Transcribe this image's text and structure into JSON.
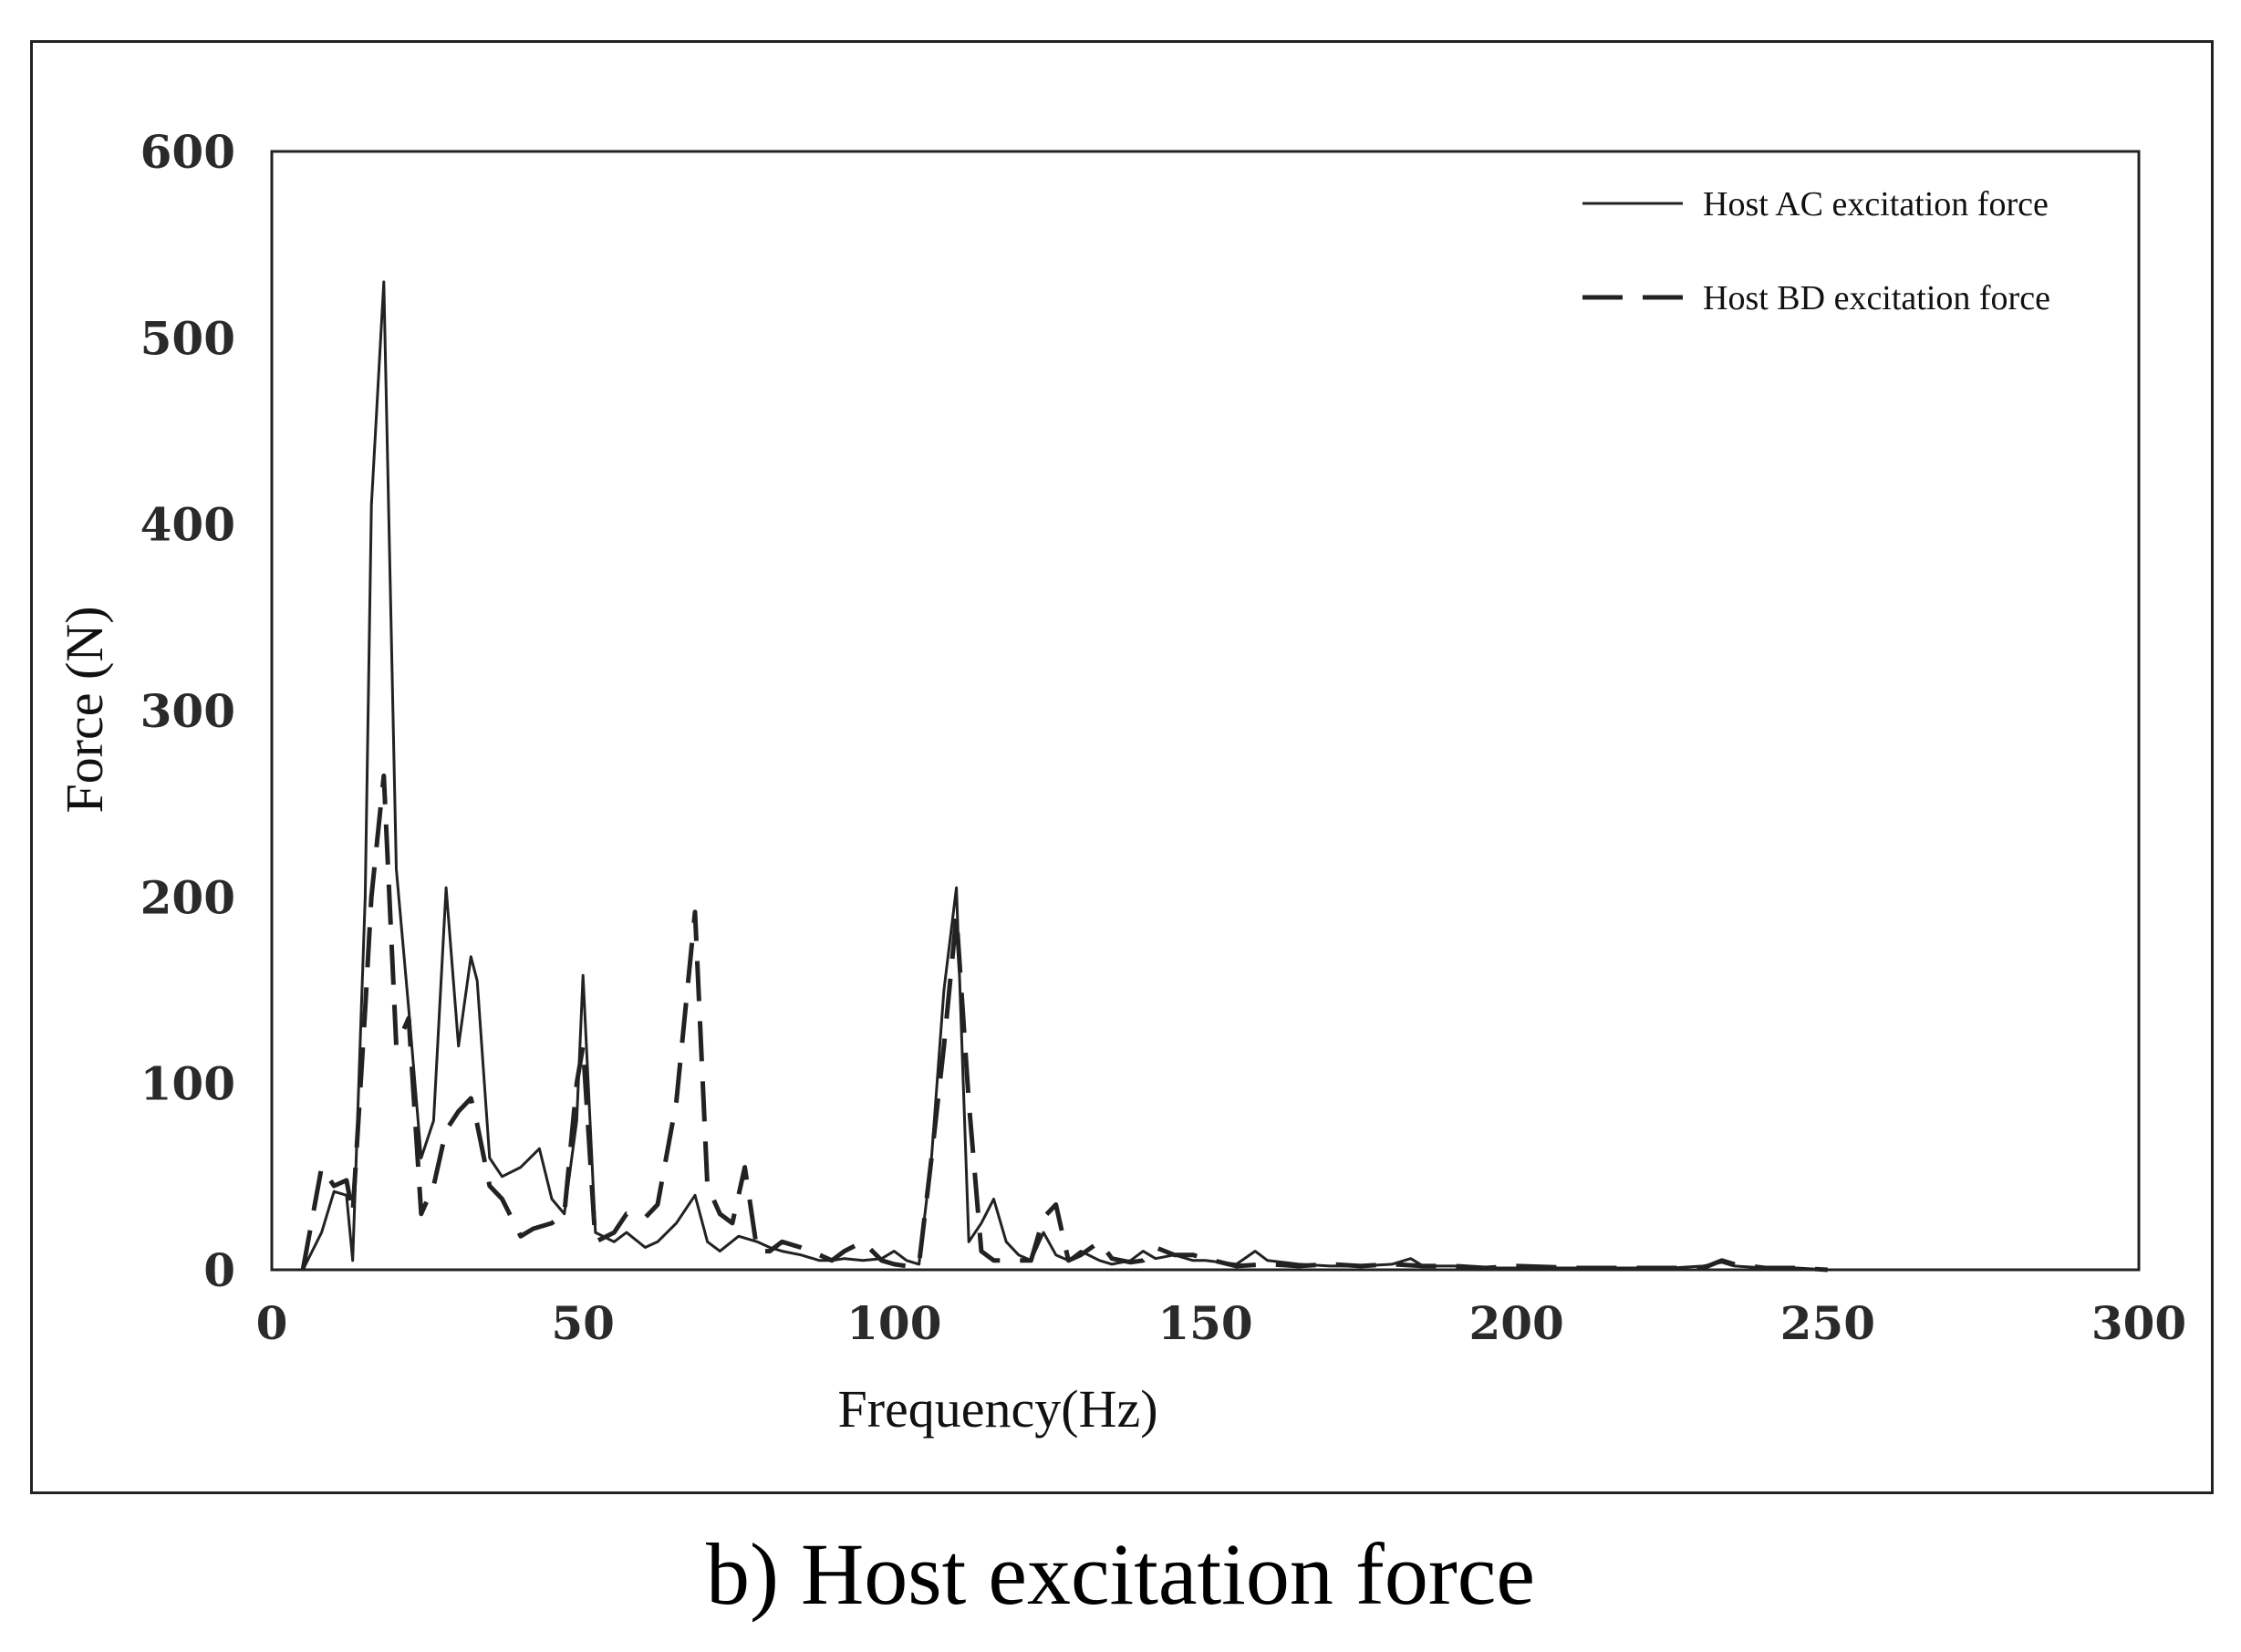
{
  "caption": "b) Host excitation force",
  "chart_data": {
    "type": "line",
    "title": "",
    "xlabel": "Frequency(Hz)",
    "ylabel": "Force (N)",
    "xlim": [
      0,
      300
    ],
    "ylim": [
      0,
      600
    ],
    "xticks": [
      "0",
      "50",
      "100",
      "150",
      "200",
      "250",
      "300"
    ],
    "yticks": [
      "0",
      "100",
      "200",
      "300",
      "400",
      "500",
      "600"
    ],
    "grid": false,
    "legend": "top-right",
    "series": [
      {
        "name": "Host AC excitation force",
        "style": "solid",
        "color": "#222222",
        "x": [
          5,
          8,
          10,
          12,
          13,
          15,
          16,
          18,
          20,
          22,
          24,
          26,
          28,
          30,
          32,
          33,
          35,
          37,
          40,
          43,
          45,
          47,
          49,
          50,
          52,
          55,
          57,
          60,
          62,
          65,
          68,
          70,
          72,
          75,
          78,
          80,
          82,
          85,
          88,
          90,
          92,
          95,
          98,
          100,
          102,
          104,
          106,
          108,
          110,
          112,
          114,
          116,
          118,
          120,
          122,
          124,
          126,
          128,
          130,
          133,
          135,
          138,
          140,
          142,
          145,
          148,
          150,
          155,
          158,
          160,
          165,
          170,
          175,
          180,
          183,
          185,
          190,
          195,
          200,
          210,
          220,
          225,
          230,
          233,
          235,
          240,
          245,
          250
        ],
        "y": [
          0,
          20,
          42,
          40,
          5,
          200,
          410,
          530,
          215,
          140,
          60,
          80,
          205,
          120,
          168,
          155,
          60,
          50,
          55,
          65,
          38,
          30,
          80,
          158,
          20,
          15,
          20,
          12,
          15,
          25,
          40,
          15,
          10,
          18,
          15,
          12,
          10,
          8,
          5,
          5,
          6,
          5,
          6,
          10,
          5,
          3,
          60,
          150,
          205,
          15,
          25,
          38,
          15,
          8,
          5,
          20,
          8,
          5,
          10,
          5,
          3,
          5,
          10,
          6,
          8,
          5,
          5,
          3,
          10,
          5,
          3,
          2,
          2,
          3,
          6,
          2,
          2,
          1,
          1,
          1,
          1,
          1,
          2,
          4,
          2,
          1,
          1,
          0
        ]
      },
      {
        "name": "Host BD excitation force",
        "style": "dashed",
        "color": "#222222",
        "x": [
          5,
          8,
          10,
          12,
          13,
          15,
          16,
          18,
          20,
          22,
          24,
          26,
          28,
          30,
          32,
          33,
          35,
          37,
          40,
          42,
          45,
          47,
          49,
          50,
          52,
          55,
          57,
          60,
          62,
          65,
          68,
          70,
          72,
          74,
          76,
          78,
          80,
          82,
          85,
          88,
          90,
          92,
          95,
          98,
          100,
          102,
          104,
          106,
          108,
          110,
          112,
          114,
          116,
          118,
          120,
          122,
          124,
          126,
          128,
          130,
          133,
          135,
          138,
          140,
          142,
          145,
          148,
          150,
          155,
          160,
          165,
          170,
          175,
          180,
          185,
          190,
          195,
          200,
          210,
          220,
          230,
          233,
          235,
          240,
          245,
          250
        ],
        "y": [
          0,
          55,
          45,
          48,
          30,
          140,
          200,
          265,
          120,
          135,
          30,
          45,
          75,
          85,
          92,
          78,
          45,
          38,
          18,
          22,
          25,
          30,
          100,
          120,
          15,
          20,
          30,
          28,
          35,
          90,
          192,
          45,
          30,
          25,
          55,
          10,
          10,
          15,
          12,
          8,
          5,
          10,
          15,
          5,
          3,
          2,
          3,
          60,
          120,
          190,
          90,
          10,
          5,
          5,
          5,
          5,
          28,
          35,
          5,
          8,
          15,
          6,
          4,
          5,
          12,
          8,
          8,
          6,
          2,
          3,
          2,
          3,
          2,
          3,
          2,
          2,
          1,
          2,
          1,
          1,
          1,
          5,
          3,
          1,
          1,
          0
        ]
      }
    ]
  }
}
